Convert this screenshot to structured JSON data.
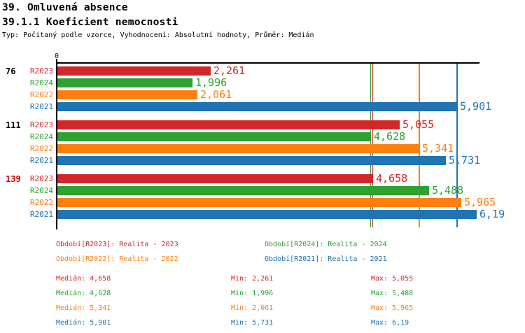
{
  "header": {
    "title": "39. Omluvená absence",
    "subtitle": "39.1.1 Koeficient nemocnosti",
    "note": "Typ: Počítaný podle vzorce, Vyhodnocení: Absolutní hodnoty, Průměr: Medián"
  },
  "palette": {
    "R2023": "#d22628",
    "R2024": "#2ea12e",
    "R2022": "#ff7f0e",
    "R2021": "#2074b4",
    "highlight_group_label": "#cc0000",
    "axis": "#000000"
  },
  "chart_data": {
    "type": "bar",
    "orientation": "horizontal",
    "axis": {
      "zero_label": "0",
      "xmin": 0,
      "xmax": 6.23,
      "grid": false
    },
    "series_order": [
      "R2023",
      "R2024",
      "R2022",
      "R2021"
    ],
    "groups": [
      {
        "label": "76",
        "label_color": "#000000",
        "bars": [
          {
            "series": "R2023",
            "value": 2.261,
            "label": "2,261"
          },
          {
            "series": "R2024",
            "value": 1.996,
            "label": "1,996"
          },
          {
            "series": "R2022",
            "value": 2.061,
            "label": "2,061"
          },
          {
            "series": "R2021",
            "value": 5.901,
            "label": "5,901"
          }
        ]
      },
      {
        "label": "111",
        "label_color": "#000000",
        "bars": [
          {
            "series": "R2023",
            "value": 5.055,
            "label": "5,055"
          },
          {
            "series": "R2024",
            "value": 4.628,
            "label": "4,628"
          },
          {
            "series": "R2022",
            "value": 5.341,
            "label": "5,341"
          },
          {
            "series": "R2021",
            "value": 5.731,
            "label": "5,731"
          }
        ]
      },
      {
        "label": "139",
        "label_color": "#cc0000",
        "bars": [
          {
            "series": "R2023",
            "value": 4.658,
            "label": "4,658"
          },
          {
            "series": "R2024",
            "value": 5.488,
            "label": "5,488"
          },
          {
            "series": "R2022",
            "value": 5.965,
            "label": "5,965"
          },
          {
            "series": "R2021",
            "value": 6.19,
            "label": "6,19"
          }
        ]
      }
    ],
    "median_lines": [
      {
        "series": "R2024",
        "value": 4.628
      },
      {
        "series": "R2023",
        "value": 4.658
      },
      {
        "series": "R2022",
        "value": 5.341
      },
      {
        "series": "R2021",
        "value": 5.901
      }
    ]
  },
  "legend": [
    {
      "series": "R2023",
      "text": "Období[R2023]: Realita - 2023"
    },
    {
      "series": "R2024",
      "text": "Období[R2024]: Realita - 2024"
    },
    {
      "series": "R2022",
      "text": "Období[R2022]: Realita - 2022"
    },
    {
      "series": "R2021",
      "text": "Období[R2021]: Realita - 2021"
    }
  ],
  "stats": [
    {
      "series": "R2023",
      "median": "Medián: 4,658",
      "min": "Min: 2,261",
      "max": "Max: 5,055"
    },
    {
      "series": "R2024",
      "median": "Medián: 4,628",
      "min": "Min: 1,996",
      "max": "Max: 5,488"
    },
    {
      "series": "R2022",
      "median": "Medián: 5,341",
      "min": "Min: 2,061",
      "max": "Max: 5,965"
    },
    {
      "series": "R2021",
      "median": "Medián: 5,901",
      "min": "Min: 5,731",
      "max": "Max: 6,19"
    }
  ]
}
